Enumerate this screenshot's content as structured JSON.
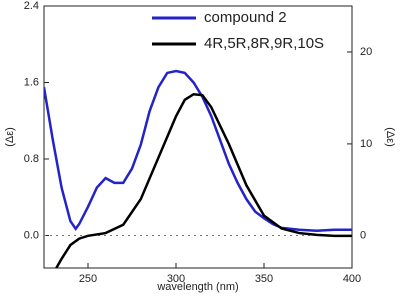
{
  "chart_data": {
    "type": "line",
    "x_label": "wavelength (nm)",
    "y_label": "(Δε)",
    "y2_label": "(Δε)",
    "xlim": [
      225,
      400
    ],
    "xticks": [
      250,
      300,
      350,
      400
    ],
    "ylim": [
      -0.34,
      2.4
    ],
    "yticks": [
      {
        "value": 0,
        "label": "0.0"
      },
      {
        "value": 0.8,
        "label": "0.8"
      },
      {
        "value": 1.6,
        "label": "1.6"
      },
      {
        "value": 2.4,
        "label": "2.4"
      }
    ],
    "y2lim": [
      -3.5,
      25
    ],
    "y2ticks": [
      0,
      10,
      20
    ],
    "reference_line": 0,
    "legend": "upper right",
    "series": [
      {
        "name": "compound 2",
        "color": "#2323c8",
        "axis": "y",
        "x": [
          225,
          230,
          235,
          240,
          243,
          245,
          250,
          255,
          260,
          265,
          270,
          275,
          280,
          285,
          290,
          295,
          300,
          305,
          310,
          315,
          320,
          325,
          330,
          335,
          340,
          345,
          350,
          355,
          360,
          370,
          380,
          390,
          400
        ],
        "values": [
          1.55,
          1.0,
          0.5,
          0.15,
          0.07,
          0.12,
          0.3,
          0.5,
          0.6,
          0.55,
          0.55,
          0.7,
          0.95,
          1.3,
          1.55,
          1.7,
          1.72,
          1.7,
          1.6,
          1.45,
          1.25,
          1.0,
          0.75,
          0.55,
          0.38,
          0.25,
          0.18,
          0.12,
          0.08,
          0.06,
          0.05,
          0.06,
          0.06
        ]
      },
      {
        "name": "4R,5R,8R,9R,10S",
        "color": "#000000",
        "axis": "y2",
        "x": [
          232,
          235,
          240,
          245,
          250,
          260,
          270,
          280,
          290,
          300,
          305,
          310,
          315,
          320,
          330,
          340,
          350,
          360,
          370,
          380,
          390,
          400
        ],
        "values": [
          -3.5,
          -2.5,
          -1.0,
          -0.3,
          0,
          0.3,
          1.2,
          4,
          8.5,
          13,
          14.8,
          15.4,
          15.3,
          14,
          10,
          5.5,
          2.2,
          0.8,
          0.3,
          0.1,
          0,
          0
        ]
      }
    ]
  }
}
